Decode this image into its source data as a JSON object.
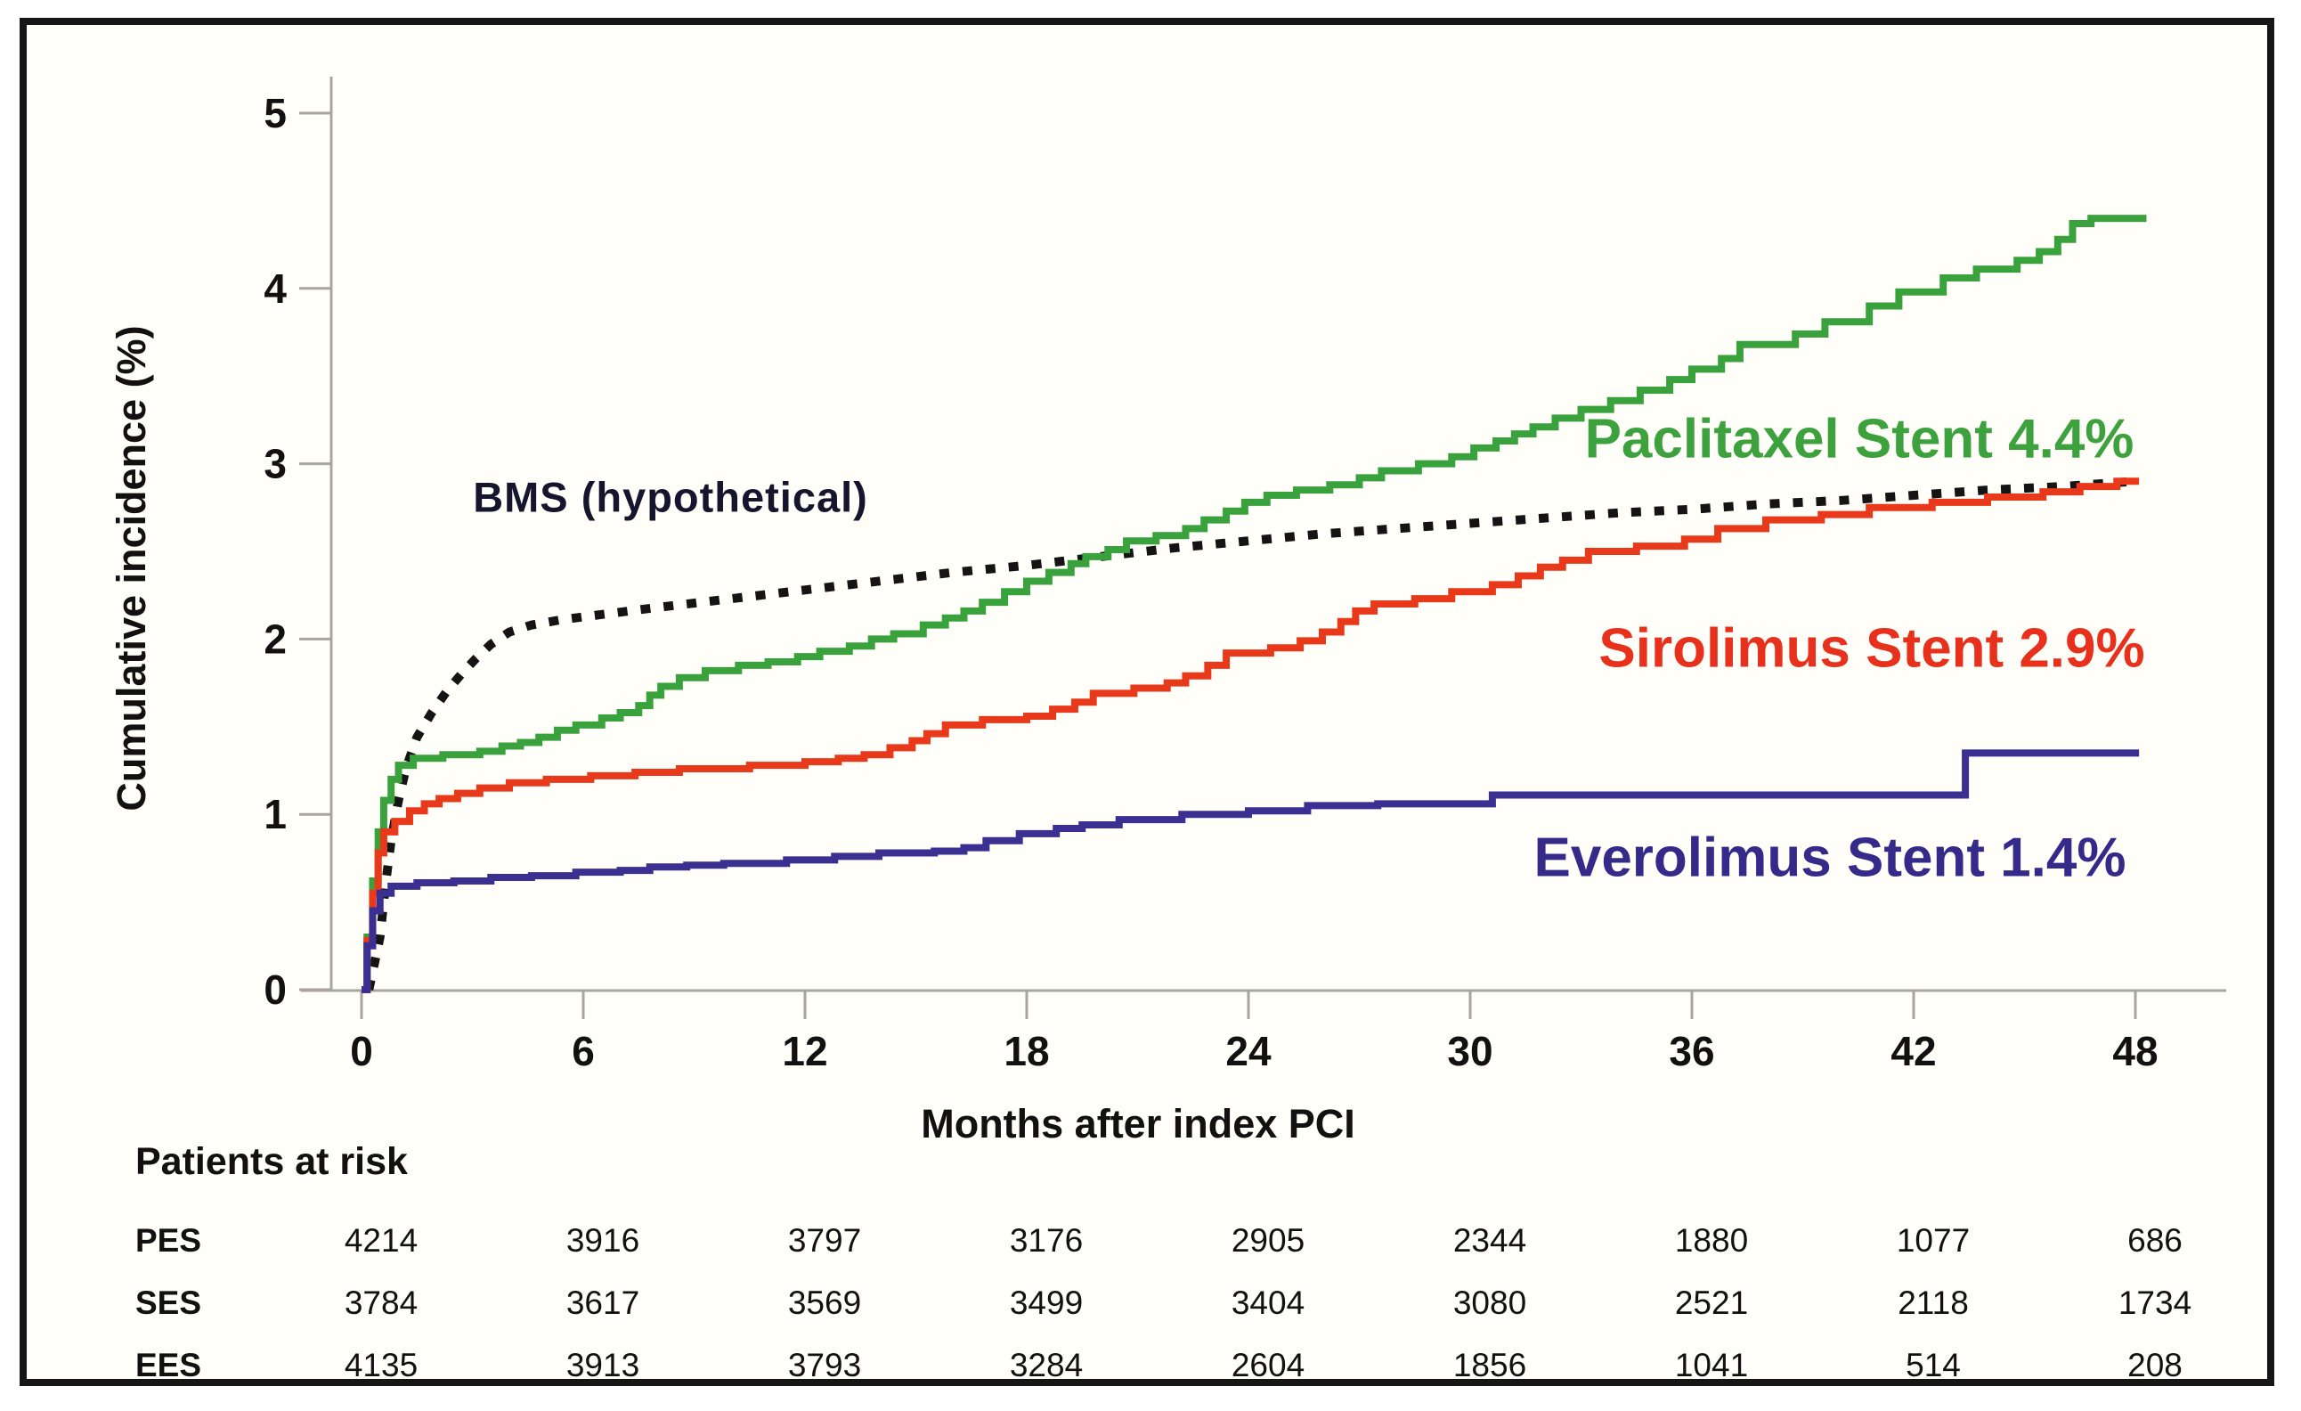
{
  "labels": {
    "y_axis": "Cumulative incidence (%)",
    "x_axis": "Months after index PCI",
    "risk_header": "Patients at risk"
  },
  "chart_data": {
    "type": "line",
    "subtype": "step-cumulative-incidence",
    "xlabel": "Months after index PCI",
    "ylabel": "Cumulative incidence (%)",
    "xlim": [
      0,
      48
    ],
    "ylim": [
      0,
      5
    ],
    "x_ticks": [
      0,
      6,
      12,
      18,
      24,
      30,
      36,
      42,
      48
    ],
    "y_ticks": [
      0,
      1,
      2,
      3,
      4,
      5
    ],
    "grid": "off",
    "legend_position": "inline-annotations",
    "annotations": {
      "bms": {
        "text": "BMS (hypothetical)",
        "color": "#15152e"
      },
      "pes": {
        "text": "Paclitaxel Stent 4.4%",
        "color": "#3da23e"
      },
      "ses": {
        "text": "Sirolimus Stent 2.9%",
        "color": "#e8311c"
      },
      "ees": {
        "text": "Everolimus Stent 1.4%",
        "color": "#352a8a"
      }
    },
    "series": [
      {
        "id": "bms",
        "name": "BMS (hypothetical)",
        "style": "dotted",
        "color": "#141414",
        "final_value": 2.9,
        "points": [
          [
            0.2,
            0
          ],
          [
            0.5,
            0.3
          ],
          [
            0.65,
            0.6
          ],
          [
            0.8,
            0.85
          ],
          [
            1.0,
            1.08
          ],
          [
            1.2,
            1.26
          ],
          [
            1.5,
            1.44
          ],
          [
            1.9,
            1.58
          ],
          [
            2.3,
            1.7
          ],
          [
            2.7,
            1.8
          ],
          [
            3.1,
            1.89
          ],
          [
            3.5,
            1.97
          ],
          [
            4.0,
            2.04
          ],
          [
            4.6,
            2.08
          ],
          [
            5.4,
            2.11
          ],
          [
            6.5,
            2.14
          ],
          [
            8,
            2.18
          ],
          [
            10,
            2.23
          ],
          [
            12,
            2.28
          ],
          [
            14,
            2.33
          ],
          [
            16,
            2.38
          ],
          [
            18,
            2.42
          ],
          [
            20,
            2.47
          ],
          [
            22,
            2.52
          ],
          [
            24,
            2.56
          ],
          [
            26,
            2.6
          ],
          [
            28,
            2.63
          ],
          [
            30,
            2.66
          ],
          [
            32,
            2.69
          ],
          [
            34,
            2.72
          ],
          [
            36,
            2.74
          ],
          [
            38,
            2.77
          ],
          [
            40,
            2.79
          ],
          [
            42,
            2.82
          ],
          [
            44,
            2.85
          ],
          [
            46,
            2.87
          ],
          [
            48,
            2.9
          ]
        ]
      },
      {
        "id": "pes",
        "name": "Paclitaxel Stent",
        "style": "step",
        "color": "#3aa23c",
        "final_value": 4.4,
        "end_month": 48.3,
        "points": [
          [
            0,
            0
          ],
          [
            0.15,
            0.3
          ],
          [
            0.3,
            0.62
          ],
          [
            0.45,
            0.9
          ],
          [
            0.6,
            1.08
          ],
          [
            0.8,
            1.2
          ],
          [
            1.0,
            1.28
          ],
          [
            1.4,
            1.32
          ],
          [
            2.2,
            1.34
          ],
          [
            3.2,
            1.36
          ],
          [
            3.8,
            1.39
          ],
          [
            4.3,
            1.41
          ],
          [
            4.8,
            1.44
          ],
          [
            5.3,
            1.48
          ],
          [
            5.8,
            1.51
          ],
          [
            6.5,
            1.55
          ],
          [
            7.0,
            1.58
          ],
          [
            7.5,
            1.62
          ],
          [
            7.8,
            1.68
          ],
          [
            8.1,
            1.73
          ],
          [
            8.6,
            1.78
          ],
          [
            9.3,
            1.82
          ],
          [
            10.2,
            1.85
          ],
          [
            11.0,
            1.87
          ],
          [
            11.8,
            1.9
          ],
          [
            12.4,
            1.93
          ],
          [
            13.2,
            1.96
          ],
          [
            13.8,
            2.0
          ],
          [
            14.4,
            2.03
          ],
          [
            15.2,
            2.08
          ],
          [
            15.8,
            2.12
          ],
          [
            16.3,
            2.16
          ],
          [
            16.8,
            2.21
          ],
          [
            17.4,
            2.27
          ],
          [
            18.0,
            2.33
          ],
          [
            18.6,
            2.38
          ],
          [
            19.2,
            2.43
          ],
          [
            19.6,
            2.47
          ],
          [
            20.2,
            2.51
          ],
          [
            20.7,
            2.56
          ],
          [
            21.5,
            2.59
          ],
          [
            22.3,
            2.63
          ],
          [
            22.8,
            2.68
          ],
          [
            23.4,
            2.73
          ],
          [
            23.9,
            2.78
          ],
          [
            24.5,
            2.82
          ],
          [
            25.3,
            2.85
          ],
          [
            26.2,
            2.88
          ],
          [
            27.0,
            2.92
          ],
          [
            27.6,
            2.96
          ],
          [
            28.6,
            3.0
          ],
          [
            29.5,
            3.04
          ],
          [
            30.1,
            3.09
          ],
          [
            30.7,
            3.13
          ],
          [
            31.2,
            3.17
          ],
          [
            31.7,
            3.21
          ],
          [
            32.3,
            3.26
          ],
          [
            33.0,
            3.31
          ],
          [
            33.8,
            3.36
          ],
          [
            34.6,
            3.42
          ],
          [
            35.4,
            3.48
          ],
          [
            36.0,
            3.54
          ],
          [
            36.8,
            3.6
          ],
          [
            37.3,
            3.68
          ],
          [
            38.8,
            3.74
          ],
          [
            39.6,
            3.81
          ],
          [
            40.8,
            3.9
          ],
          [
            41.6,
            3.98
          ],
          [
            42.8,
            4.06
          ],
          [
            43.7,
            4.11
          ],
          [
            44.8,
            4.16
          ],
          [
            45.4,
            4.21
          ],
          [
            45.9,
            4.28
          ],
          [
            46.3,
            4.37
          ],
          [
            46.8,
            4.4
          ]
        ]
      },
      {
        "id": "ses",
        "name": "Sirolimus Stent",
        "style": "step",
        "color": "#e8391a",
        "final_value": 2.9,
        "end_month": 48.1,
        "points": [
          [
            0,
            0
          ],
          [
            0.15,
            0.28
          ],
          [
            0.3,
            0.55
          ],
          [
            0.45,
            0.78
          ],
          [
            0.6,
            0.9
          ],
          [
            0.9,
            0.96
          ],
          [
            1.3,
            1.02
          ],
          [
            1.7,
            1.06
          ],
          [
            2.1,
            1.09
          ],
          [
            2.6,
            1.12
          ],
          [
            3.2,
            1.15
          ],
          [
            4.0,
            1.18
          ],
          [
            5.0,
            1.2
          ],
          [
            6.2,
            1.22
          ],
          [
            7.4,
            1.24
          ],
          [
            8.6,
            1.26
          ],
          [
            10.5,
            1.28
          ],
          [
            12.0,
            1.3
          ],
          [
            12.9,
            1.32
          ],
          [
            13.6,
            1.34
          ],
          [
            14.3,
            1.38
          ],
          [
            14.9,
            1.42
          ],
          [
            15.3,
            1.46
          ],
          [
            15.8,
            1.51
          ],
          [
            16.8,
            1.54
          ],
          [
            18.0,
            1.56
          ],
          [
            18.7,
            1.6
          ],
          [
            19.3,
            1.64
          ],
          [
            19.8,
            1.69
          ],
          [
            20.9,
            1.72
          ],
          [
            21.8,
            1.75
          ],
          [
            22.3,
            1.79
          ],
          [
            22.9,
            1.85
          ],
          [
            23.4,
            1.92
          ],
          [
            24.6,
            1.95
          ],
          [
            25.4,
            1.99
          ],
          [
            26.0,
            2.04
          ],
          [
            26.5,
            2.1
          ],
          [
            26.9,
            2.16
          ],
          [
            27.4,
            2.2
          ],
          [
            28.5,
            2.23
          ],
          [
            29.5,
            2.27
          ],
          [
            30.6,
            2.31
          ],
          [
            31.3,
            2.36
          ],
          [
            31.9,
            2.41
          ],
          [
            32.5,
            2.45
          ],
          [
            33.2,
            2.5
          ],
          [
            34.5,
            2.53
          ],
          [
            35.8,
            2.57
          ],
          [
            36.7,
            2.63
          ],
          [
            38.0,
            2.68
          ],
          [
            39.5,
            2.71
          ],
          [
            40.8,
            2.75
          ],
          [
            42.5,
            2.78
          ],
          [
            44.0,
            2.81
          ],
          [
            45.5,
            2.84
          ],
          [
            46.5,
            2.87
          ],
          [
            47.5,
            2.9
          ]
        ]
      },
      {
        "id": "ees",
        "name": "Everolimus Stent",
        "style": "step",
        "color": "#3b2f92",
        "final_value": 1.4,
        "end_month": 48.1,
        "points": [
          [
            0,
            0
          ],
          [
            0.15,
            0.25
          ],
          [
            0.3,
            0.45
          ],
          [
            0.5,
            0.55
          ],
          [
            0.8,
            0.59
          ],
          [
            1.5,
            0.61
          ],
          [
            2.5,
            0.62
          ],
          [
            3.5,
            0.64
          ],
          [
            4.6,
            0.65
          ],
          [
            5.8,
            0.67
          ],
          [
            7.0,
            0.68
          ],
          [
            7.8,
            0.7
          ],
          [
            8.8,
            0.71
          ],
          [
            9.8,
            0.72
          ],
          [
            11.5,
            0.74
          ],
          [
            12.8,
            0.76
          ],
          [
            14.0,
            0.78
          ],
          [
            15.5,
            0.79
          ],
          [
            16.3,
            0.81
          ],
          [
            16.9,
            0.85
          ],
          [
            17.8,
            0.89
          ],
          [
            18.8,
            0.92
          ],
          [
            19.5,
            0.94
          ],
          [
            20.5,
            0.97
          ],
          [
            22.2,
            1.0
          ],
          [
            24.0,
            1.02
          ],
          [
            25.6,
            1.05
          ],
          [
            27.5,
            1.06
          ],
          [
            30.6,
            1.11
          ],
          [
            43.4,
            1.35
          ]
        ]
      }
    ],
    "risk_table": {
      "header": "Patients at risk",
      "columns_months": [
        0,
        6,
        12,
        18,
        24,
        30,
        36,
        42,
        48
      ],
      "rows": [
        {
          "label": "PES",
          "counts": [
            4214,
            3916,
            3797,
            3176,
            2905,
            2344,
            1880,
            1077,
            686
          ]
        },
        {
          "label": "SES",
          "counts": [
            3784,
            3617,
            3569,
            3499,
            3404,
            3080,
            2521,
            2118,
            1734
          ]
        },
        {
          "label": "EES",
          "counts": [
            4135,
            3913,
            3793,
            3284,
            2604,
            1856,
            1041,
            514,
            208
          ]
        }
      ]
    }
  }
}
